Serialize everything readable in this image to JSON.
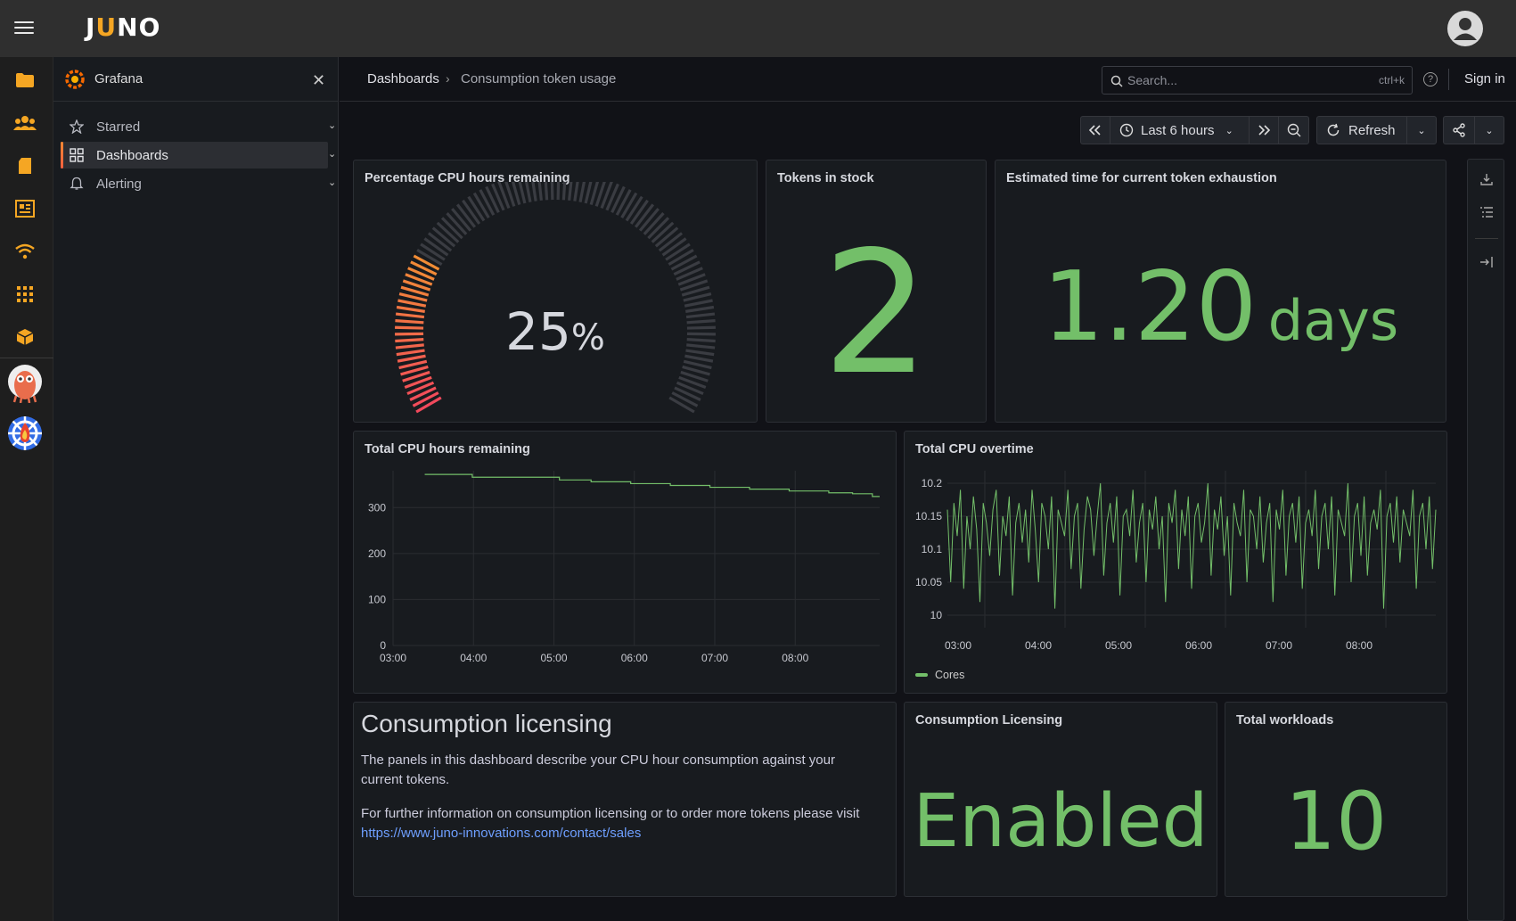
{
  "app": {
    "logo_text_pre": "J",
    "logo_text_u": "U",
    "logo_text_post": "NO"
  },
  "rail": {
    "icons": [
      "folder-icon",
      "team-icon",
      "document-icon",
      "dashboard-news-icon",
      "wifi-icon",
      "apps-grid-icon",
      "package-icon",
      "argo-icon",
      "helm-icon"
    ]
  },
  "nav": {
    "title": "Grafana",
    "items": [
      {
        "label": "Starred"
      },
      {
        "label": "Dashboards"
      },
      {
        "label": "Alerting"
      }
    ]
  },
  "breadcrumb": {
    "root": "Dashboards",
    "current": "Consumption token usage"
  },
  "search": {
    "placeholder": "Search...",
    "shortcut": "ctrl+k"
  },
  "header": {
    "signin": "Sign in"
  },
  "toolbar": {
    "time_range": "Last 6 hours",
    "refresh": "Refresh"
  },
  "panels": {
    "gauge": {
      "title": "Percentage CPU hours remaining",
      "value": "25",
      "unit": "%",
      "fraction": 0.25
    },
    "tokens": {
      "title": "Tokens in stock",
      "value": "2"
    },
    "exhaustion": {
      "title": "Estimated time for current token exhaustion",
      "value": "1.20",
      "unit": "days"
    },
    "cpu_remaining": {
      "title": "Total CPU hours remaining"
    },
    "cpu_overtime": {
      "title": "Total CPU overtime",
      "legend": "Cores"
    },
    "licensing_text": {
      "heading": "Consumption licensing",
      "p1": "The panels in this dashboard describe your CPU hour consumption against your current tokens.",
      "p2": "For further information on consumption licensing or to order more tokens please visit",
      "link": "https://www.juno-innovations.com/contact/sales"
    },
    "licensing_status": {
      "title": "Consumption Licensing",
      "value": "Enabled"
    },
    "workloads": {
      "title": "Total workloads",
      "value": "10"
    }
  },
  "colors": {
    "accent_green": "#73bf69",
    "brand_orange": "#f5a623",
    "link_blue": "#6e9fff"
  },
  "chart_data": [
    {
      "type": "line",
      "title": "Total CPU hours remaining",
      "x": [
        "03:00",
        "03:30",
        "04:00",
        "04:30",
        "05:00",
        "05:30",
        "06:00",
        "06:30",
        "07:00",
        "07:30",
        "08:00",
        "08:30",
        "08:50"
      ],
      "ylim": [
        0,
        380
      ],
      "yticks": [
        "0",
        "100",
        "200",
        "300"
      ],
      "xticks": [
        "03:00",
        "04:00",
        "05:00",
        "06:00",
        "07:00",
        "08:00"
      ],
      "series": [
        {
          "values": [
            372,
            366,
            366,
            360,
            356,
            352,
            348,
            344,
            340,
            336,
            332,
            330,
            324
          ]
        }
      ]
    },
    {
      "type": "line",
      "title": "Total CPU overtime",
      "ylim": [
        10,
        10.2
      ],
      "yticks": [
        "10",
        "10.05",
        "10.1",
        "10.15",
        "10.2"
      ],
      "xticks": [
        "03:00",
        "04:00",
        "05:00",
        "06:00",
        "07:00",
        "08:00"
      ],
      "series": [
        {
          "name": "Cores",
          "values": [
            10.16,
            10.05,
            10.17,
            10.12,
            10.19,
            10.04,
            10.15,
            10.1,
            10.18,
            10.13,
            10.02,
            10.17,
            10.14,
            10.09,
            10.16,
            10.19,
            10.06,
            10.15,
            10.12,
            10.18,
            10.03,
            10.14,
            10.17,
            10.11,
            10.16,
            10.08,
            10.19,
            10.13,
            10.05,
            10.17,
            10.15,
            10.1,
            10.18,
            10.01,
            10.16,
            10.14,
            10.12,
            10.19,
            10.07,
            10.15,
            10.17,
            10.04,
            10.13,
            10.18,
            10.16,
            10.09,
            10.15,
            10.2,
            10.06,
            10.14,
            10.17,
            10.11,
            10.18,
            10.03,
            10.15,
            10.16,
            10.12,
            10.19,
            10.08,
            10.14,
            10.17,
            10.05,
            10.16,
            10.13,
            10.18,
            10.1,
            10.15,
            10.02,
            10.17,
            10.14,
            10.19,
            10.07,
            10.16,
            10.12,
            10.18,
            10.04,
            10.15,
            10.17,
            10.11,
            10.14,
            10.2,
            10.06,
            10.16,
            10.13,
            10.18,
            10.09,
            10.15,
            10.03,
            10.17,
            10.14,
            10.12,
            10.19,
            10.05,
            10.16,
            10.15,
            10.1,
            10.18,
            10.08,
            10.14,
            10.17,
            10.02,
            10.16,
            10.13,
            10.19,
            10.06,
            10.15,
            10.17,
            10.11,
            10.18,
            10.04,
            10.14,
            10.16,
            10.12,
            10.19,
            10.07,
            10.15,
            10.17,
            10.1,
            10.18,
            10.03,
            10.16,
            10.14,
            10.12,
            10.2,
            10.05,
            10.15,
            10.17,
            10.09,
            10.18,
            10.06,
            10.14,
            10.16,
            10.13,
            10.19,
            10.01,
            10.15,
            10.17,
            10.11,
            10.18,
            10.08,
            10.16,
            10.14,
            10.12,
            10.19,
            10.04,
            10.15,
            10.17,
            10.1,
            10.18,
            10.07,
            10.16
          ]
        }
      ]
    }
  ]
}
